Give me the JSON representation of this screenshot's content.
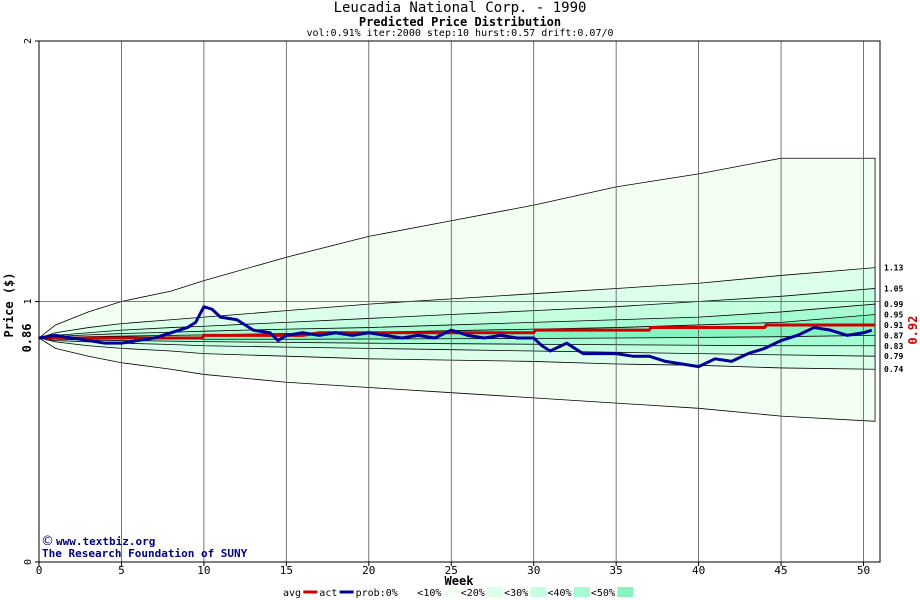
{
  "chart_data": {
    "type": "area",
    "title": "Leucadia National Corp. - 1990",
    "subtitle": "Predicted Price Distribution",
    "params": "vol:0.91% iter:2000 step:10 hurst:0.57 drift:0.07/0",
    "xlabel": "Week",
    "ylabel": "Price ($)",
    "xlim": [
      0,
      51
    ],
    "ylim": [
      0,
      2
    ],
    "x_ticks": [
      0,
      5,
      10,
      15,
      20,
      25,
      30,
      35,
      40,
      45,
      50
    ],
    "y_ticks": [
      0,
      1,
      2
    ],
    "start_price": 0.86,
    "start_label": "0.86",
    "last_price_label": "0.92",
    "grid": true,
    "band_colors": [
      "#f2fff2",
      "#dcffec",
      "#c4ffe0",
      "#a6fbd3",
      "#86f4c1"
    ],
    "bands_x": [
      0,
      1,
      3,
      5,
      8,
      10,
      15,
      20,
      25,
      30,
      35,
      40,
      45,
      50.7
    ],
    "bands": [
      {
        "lo": [
          0.86,
          0.82,
          0.79,
          0.765,
          0.74,
          0.72,
          0.69,
          0.67,
          0.65,
          0.63,
          0.61,
          0.59,
          0.56,
          0.54
        ],
        "hi": [
          0.86,
          0.91,
          0.96,
          1.0,
          1.04,
          1.08,
          1.17,
          1.25,
          1.31,
          1.37,
          1.44,
          1.49,
          1.55,
          1.55
        ]
      },
      {
        "lo": [
          0.86,
          0.845,
          0.83,
          0.82,
          0.81,
          0.8,
          0.79,
          0.78,
          0.775,
          0.77,
          0.76,
          0.755,
          0.745,
          0.74
        ],
        "hi": [
          0.86,
          0.88,
          0.9,
          0.915,
          0.93,
          0.94,
          0.965,
          0.99,
          1.01,
          1.03,
          1.05,
          1.07,
          1.1,
          1.13
        ]
      },
      {
        "lo": [
          0.86,
          0.85,
          0.845,
          0.84,
          0.835,
          0.83,
          0.825,
          0.82,
          0.815,
          0.81,
          0.805,
          0.8,
          0.795,
          0.79
        ],
        "hi": [
          0.86,
          0.87,
          0.88,
          0.89,
          0.9,
          0.905,
          0.92,
          0.935,
          0.95,
          0.965,
          0.98,
          1.0,
          1.02,
          1.05
        ]
      },
      {
        "lo": [
          0.86,
          0.855,
          0.852,
          0.85,
          0.848,
          0.846,
          0.843,
          0.84,
          0.838,
          0.836,
          0.834,
          0.832,
          0.83,
          0.83
        ],
        "hi": [
          0.86,
          0.866,
          0.872,
          0.877,
          0.882,
          0.886,
          0.894,
          0.9,
          0.91,
          0.92,
          0.93,
          0.94,
          0.96,
          0.99
        ]
      },
      {
        "lo": [
          0.86,
          0.858,
          0.857,
          0.856,
          0.856,
          0.855,
          0.855,
          0.856,
          0.857,
          0.858,
          0.86,
          0.862,
          0.865,
          0.87
        ],
        "hi": [
          0.86,
          0.862,
          0.865,
          0.867,
          0.87,
          0.872,
          0.877,
          0.882,
          0.888,
          0.894,
          0.9,
          0.91,
          0.92,
          0.95
        ]
      }
    ],
    "percentile_labels": [
      {
        "label": "1.13",
        "value": 1.13
      },
      {
        "label": "1.05",
        "value": 1.05
      },
      {
        "label": "0.99",
        "value": 0.99
      },
      {
        "label": "0.95",
        "value": 0.95
      },
      {
        "label": "0.91",
        "value": 0.91
      },
      {
        "label": "0.87",
        "value": 0.87
      },
      {
        "label": "0.83",
        "value": 0.83
      },
      {
        "label": "0.79",
        "value": 0.79
      },
      {
        "label": "0.74",
        "value": 0.74
      }
    ],
    "series": [
      {
        "name": "avg",
        "color": "#cc0000",
        "x": [
          0,
          5,
          9.9,
          10,
          16,
          17,
          30,
          30.1,
          37,
          37.1,
          44,
          44.1,
          50.7
        ],
        "y": [
          0.86,
          0.86,
          0.86,
          0.87,
          0.87,
          0.88,
          0.88,
          0.89,
          0.89,
          0.9,
          0.9,
          0.91,
          0.91
        ]
      },
      {
        "name": "act",
        "color": "#000099",
        "x": [
          0,
          1,
          2,
          3,
          4,
          5,
          6,
          7,
          8,
          9,
          9.5,
          10,
          10.5,
          11,
          12,
          13,
          14,
          14.5,
          15,
          16,
          17,
          18,
          19,
          20,
          21,
          22,
          23,
          24,
          25,
          26,
          27,
          28,
          29,
          30,
          30.5,
          31,
          32,
          33,
          34,
          35,
          36,
          37,
          38,
          39,
          40,
          41,
          42,
          43,
          44,
          45,
          46,
          47,
          48,
          49,
          50,
          50.5
        ],
        "y": [
          0.86,
          0.87,
          0.86,
          0.85,
          0.84,
          0.84,
          0.85,
          0.86,
          0.88,
          0.9,
          0.92,
          0.98,
          0.97,
          0.94,
          0.93,
          0.89,
          0.88,
          0.85,
          0.87,
          0.88,
          0.87,
          0.88,
          0.87,
          0.88,
          0.87,
          0.86,
          0.87,
          0.86,
          0.89,
          0.87,
          0.86,
          0.87,
          0.86,
          0.86,
          0.83,
          0.81,
          0.84,
          0.8,
          0.8,
          0.8,
          0.79,
          0.79,
          0.77,
          0.76,
          0.75,
          0.78,
          0.77,
          0.8,
          0.82,
          0.85,
          0.87,
          0.9,
          0.89,
          0.87,
          0.88,
          0.89
        ]
      }
    ],
    "legend": {
      "items": [
        "avg",
        "act",
        "prob:0%",
        "<10%",
        "<20%",
        "<30%",
        "<40%",
        "<50%"
      ],
      "placement": "bottom-center"
    },
    "credits": [
      "www.textbiz.org",
      "The Research Foundation of SUNY"
    ]
  }
}
